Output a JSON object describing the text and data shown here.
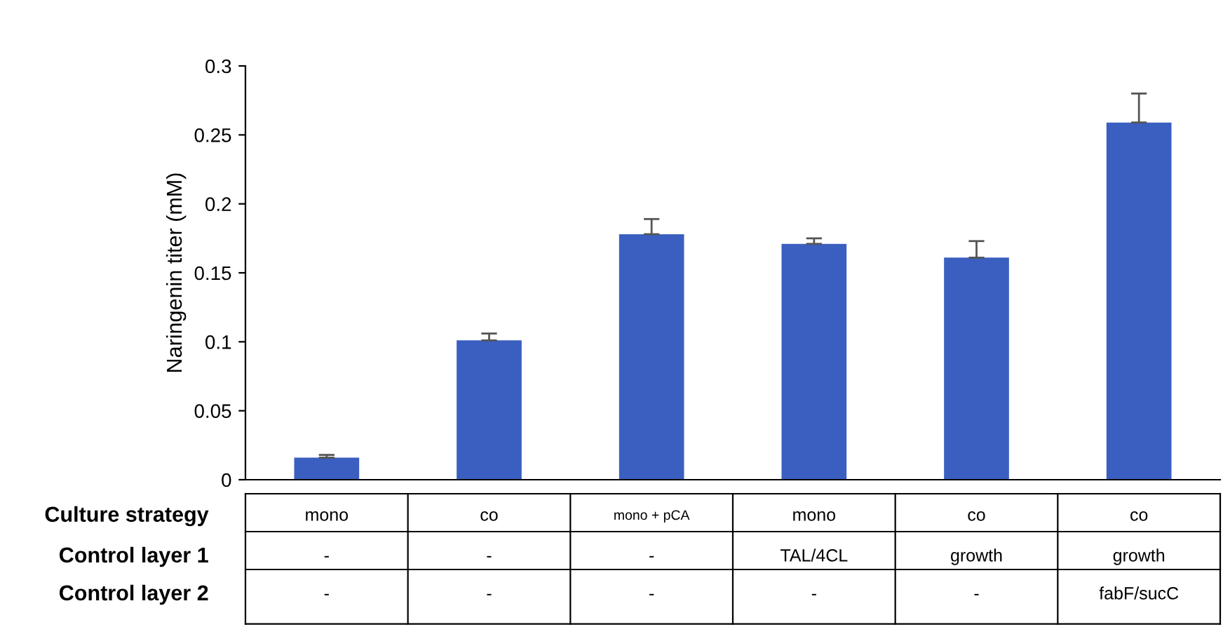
{
  "chart_data": {
    "type": "bar",
    "ylabel": "Naringenin titer (mM)",
    "categories": [
      "mono",
      "co",
      "mono + pCA",
      "mono",
      "co",
      "co"
    ],
    "values": [
      0.016,
      0.101,
      0.178,
      0.171,
      0.161,
      0.259
    ],
    "errors": [
      [
        0.016,
        0.018
      ],
      [
        0.101,
        0.106
      ],
      [
        0.178,
        0.189
      ],
      [
        0.171,
        0.175
      ],
      [
        0.161,
        0.173
      ],
      [
        0.259,
        0.28
      ]
    ],
    "color": "#3a5fc0",
    "ylim": [
      0,
      0.3
    ],
    "yticks": [
      0,
      0.05,
      0.1,
      0.15,
      0.2,
      0.25,
      0.3
    ],
    "grid": false,
    "annotations": [
      "Culture strategy",
      "Control layer 1",
      "Control layer 2",
      "-",
      "-",
      "-",
      "TAL/4CL",
      "growth",
      "growth",
      "-",
      "-",
      "-",
      "-",
      "-",
      "fabF/sucC"
    ]
  }
}
